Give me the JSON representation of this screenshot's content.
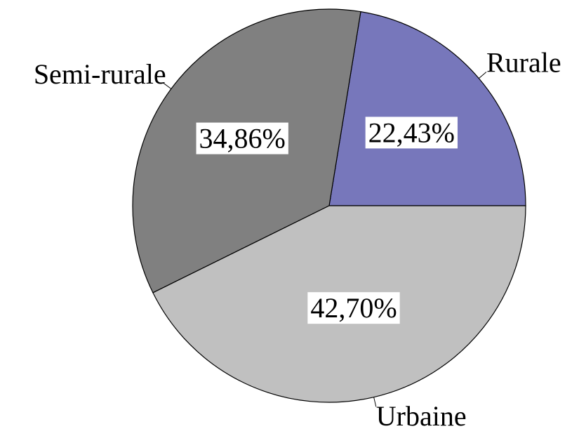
{
  "chart_data": {
    "type": "pie",
    "categories": [
      "Rurale",
      "Semi-rurale",
      "Urbaine"
    ],
    "values": [
      22.43,
      34.86,
      42.7
    ],
    "value_labels": [
      "22,43%",
      "34,86%",
      "42,70%"
    ],
    "colors": [
      "#7777bb",
      "#808080",
      "#c0c0c0"
    ]
  }
}
